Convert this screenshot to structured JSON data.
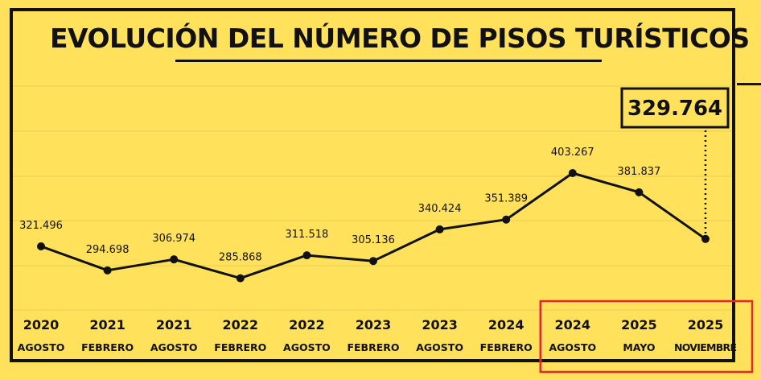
{
  "chart_data": {
    "type": "line",
    "title": "EVOLUCIÓN DEL NÚMERO DE PISOS TURÍSTICOS",
    "categories": [
      {
        "year": "2020",
        "month": "AGOSTO"
      },
      {
        "year": "2021",
        "month": "FEBRERO"
      },
      {
        "year": "2021",
        "month": "AGOSTO"
      },
      {
        "year": "2022",
        "month": "FEBRERO"
      },
      {
        "year": "2022",
        "month": "AGOSTO"
      },
      {
        "year": "2023",
        "month": "FEBRERO"
      },
      {
        "year": "2023",
        "month": "AGOSTO"
      },
      {
        "year": "2024",
        "month": "FEBRERO"
      },
      {
        "year": "2024",
        "month": "AGOSTO"
      },
      {
        "year": "2025",
        "month": "MAYO"
      },
      {
        "year": "2025",
        "month": "NOVIEMBRE"
      }
    ],
    "values": [
      321496,
      294698,
      306974,
      285868,
      311518,
      305136,
      340424,
      351389,
      403267,
      381837,
      329764
    ],
    "value_labels": [
      "321.496",
      "294.698",
      "306.974",
      "285.868",
      "311.518",
      "305.136",
      "340.424",
      "351.389",
      "403.267",
      "381.837",
      ""
    ],
    "callout": {
      "label": "329.764",
      "index": 10
    },
    "highlight": {
      "from_index": 8,
      "to_index": 10,
      "color": "#E8262D"
    },
    "grid": true,
    "ylim": [
      230000,
      480000
    ],
    "colors": {
      "background": "#FFE15C",
      "line": "#111111",
      "grid": "#E9CD52"
    }
  }
}
